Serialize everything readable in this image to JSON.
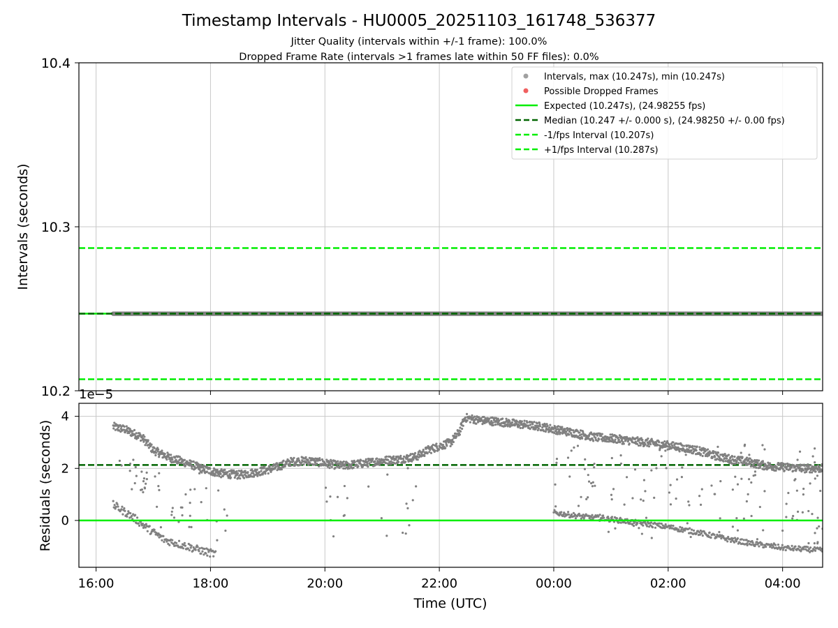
{
  "figure": {
    "title": "Timestamp Intervals - HU0005_20251103_161748_536377",
    "subtitle_1": "Jitter Quality (intervals within +/-1 frame): 100.0%",
    "subtitle_2": "Dropped Frame Rate (intervals >1 frames late within 50 FF files): 0.0%"
  },
  "colors": {
    "interval_points": "#808080",
    "dropped_points": "#ff0000",
    "expected_line": "#00ee00",
    "median_line": "#006400",
    "fps_bounds": "#00ee00",
    "grid": "#c8c8c8"
  },
  "chart_data": [
    {
      "type": "scatter",
      "name": "intervals",
      "ylabel": "Intervals (seconds)",
      "ylim": [
        10.2,
        10.4
      ],
      "yticks": [
        10.2,
        10.3,
        10.4
      ],
      "ytick_labels": [
        "10.2",
        "10.3",
        "10.4"
      ],
      "xlim_hours": [
        15.7,
        28.7
      ],
      "grid": true,
      "legend_position": "upper-right",
      "legend": [
        {
          "label": "Intervals, max (10.247s), min (10.247s)",
          "kind": "marker",
          "color": "#a0a0a0"
        },
        {
          "label": "Possible Dropped Frames",
          "kind": "marker",
          "color": "#f06060"
        },
        {
          "label": "Expected (10.247s), (24.98255 fps)",
          "kind": "solid",
          "color": "#00ee00"
        },
        {
          "label": "Median (10.247 +/- 0.000 s), (24.98250 +/- 0.00 fps)",
          "kind": "dashed",
          "color": "#006400"
        },
        {
          "label": "-1/fps Interval (10.207s)",
          "kind": "dashed",
          "color": "#00ee00"
        },
        {
          "label": "+1/fps Interval (10.287s)",
          "kind": "dashed",
          "color": "#00ee00"
        }
      ],
      "series": {
        "intervals": {
          "start_hour": 16.3,
          "end_hour": 28.7,
          "value": 10.247
        },
        "expected": 10.247,
        "median": 10.247,
        "minus_1_fps": 10.207,
        "plus_1_fps": 10.287
      }
    },
    {
      "type": "scatter",
      "name": "residuals",
      "ylabel": "Residuals (seconds)",
      "offset_label": "1e−5",
      "ylim": [
        -1.8,
        4.5
      ],
      "yticks": [
        0,
        2,
        4
      ],
      "ytick_labels": [
        "0",
        "2",
        "4"
      ],
      "xlabel": "Time (UTC)",
      "xlim_hours": [
        15.7,
        28.7
      ],
      "xticks_hours": [
        16,
        18,
        20,
        22,
        24,
        26,
        28
      ],
      "xtick_labels": [
        "16:00",
        "18:00",
        "20:00",
        "22:00",
        "00:00",
        "02:00",
        "04:00"
      ],
      "grid": true,
      "expected_line": 0,
      "median_line": 2.13,
      "series": [
        {
          "name": "main-band",
          "spread": 0.16,
          "points": [
            [
              16.3,
              3.6
            ],
            [
              16.5,
              3.5
            ],
            [
              16.8,
              3.2
            ],
            [
              17.0,
              2.7
            ],
            [
              17.3,
              2.4
            ],
            [
              17.6,
              2.2
            ],
            [
              17.9,
              1.95
            ],
            [
              18.2,
              1.8
            ],
            [
              18.5,
              1.75
            ],
            [
              18.8,
              1.85
            ],
            [
              19.1,
              2.0
            ],
            [
              19.4,
              2.25
            ],
            [
              19.7,
              2.3
            ],
            [
              20.0,
              2.2
            ],
            [
              20.3,
              2.1
            ],
            [
              20.7,
              2.2
            ],
            [
              21.0,
              2.3
            ],
            [
              21.3,
              2.35
            ],
            [
              21.6,
              2.45
            ],
            [
              21.8,
              2.7
            ],
            [
              22.0,
              2.85
            ],
            [
              22.2,
              3.0
            ],
            [
              22.35,
              3.4
            ],
            [
              22.45,
              3.95
            ],
            [
              22.7,
              3.85
            ],
            [
              23.0,
              3.8
            ],
            [
              23.4,
              3.7
            ],
            [
              23.8,
              3.6
            ],
            [
              24.0,
              3.5
            ],
            [
              24.4,
              3.35
            ],
            [
              24.7,
              3.2
            ],
            [
              25.0,
              3.15
            ],
            [
              25.4,
              3.05
            ],
            [
              25.8,
              2.95
            ],
            [
              26.1,
              2.85
            ],
            [
              26.5,
              2.7
            ],
            [
              26.8,
              2.5
            ],
            [
              27.1,
              2.35
            ],
            [
              27.4,
              2.25
            ],
            [
              27.7,
              2.1
            ],
            [
              28.0,
              2.05
            ],
            [
              28.4,
              2.0
            ],
            [
              28.7,
              2.0
            ]
          ]
        },
        {
          "name": "lower-band-1",
          "spread": 0.15,
          "points": [
            [
              16.3,
              0.6
            ],
            [
              16.6,
              0.2
            ],
            [
              16.9,
              -0.3
            ],
            [
              17.2,
              -0.75
            ],
            [
              17.6,
              -1.0
            ],
            [
              17.9,
              -1.2
            ],
            [
              18.1,
              -1.3
            ]
          ]
        },
        {
          "name": "lower-band-2",
          "spread": 0.1,
          "points": [
            [
              24.0,
              0.3
            ],
            [
              24.5,
              0.15
            ],
            [
              25.0,
              0.05
            ],
            [
              25.5,
              -0.1
            ],
            [
              26.0,
              -0.25
            ],
            [
              26.5,
              -0.45
            ],
            [
              27.0,
              -0.7
            ],
            [
              27.5,
              -0.9
            ],
            [
              28.0,
              -1.05
            ],
            [
              28.7,
              -1.15
            ]
          ]
        },
        {
          "name": "scatter-cloud",
          "scatter": [
            [
              16.4,
              1.0,
              16.9,
              2.5,
              20
            ],
            [
              17.0,
              -0.5,
              18.0,
              2.2,
              28
            ],
            [
              18.0,
              -1.0,
              18.3,
              1.2,
              6
            ],
            [
              20.0,
              -1.1,
              20.4,
              1.5,
              10
            ],
            [
              20.5,
              -0.9,
              21.5,
              2.1,
              6
            ],
            [
              21.4,
              -0.8,
              21.6,
              1.5,
              6
            ],
            [
              24.0,
              -0.5,
              25.5,
              3.3,
              45
            ],
            [
              25.5,
              -0.9,
              28.7,
              3.0,
              95
            ],
            [
              28.0,
              -1.2,
              28.7,
              2.0,
              16
            ]
          ]
        }
      ]
    }
  ]
}
